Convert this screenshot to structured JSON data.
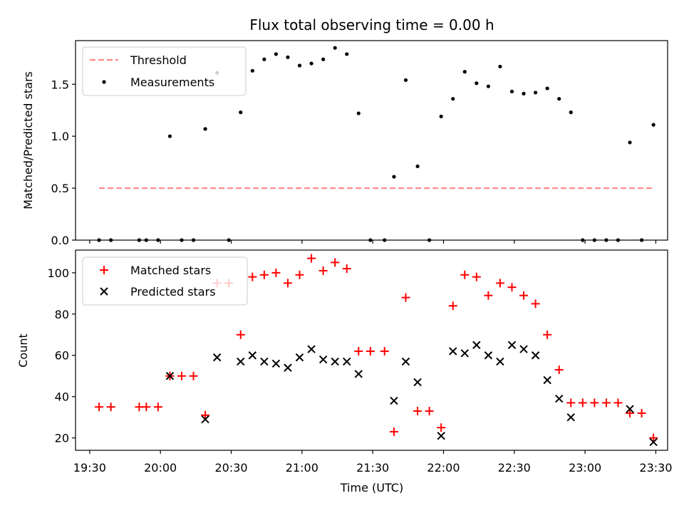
{
  "chart_data": [
    {
      "type": "scatter",
      "title": "Flux total observing time = 0.00 h",
      "xlabel": "",
      "ylabel": "Matched/Predicted stars",
      "xlim": [
        "19:24",
        "23:35"
      ],
      "ylim": [
        0,
        1.92
      ],
      "yticks": [
        0.0,
        0.5,
        1.0,
        1.5
      ],
      "ytick_labels": [
        "0.0",
        "0.5",
        "1.0",
        "1.5"
      ],
      "legend_position": "upper-left",
      "series": [
        {
          "name": "Threshold",
          "kind": "line",
          "style": "dashed",
          "color": "#ff7f7f",
          "x": [
            "19:34",
            "23:29"
          ],
          "y": [
            0.5,
            0.5
          ]
        },
        {
          "name": "Measurements",
          "kind": "scatter",
          "marker": "dot",
          "color": "#000000",
          "x": [
            "19:34",
            "19:39",
            "19:51",
            "19:54",
            "19:59",
            "20:04",
            "20:09",
            "20:14",
            "20:19",
            "20:24",
            "20:29",
            "20:34",
            "20:39",
            "20:44",
            "20:49",
            "20:54",
            "20:59",
            "21:04",
            "21:09",
            "21:14",
            "21:19",
            "21:24",
            "21:29",
            "21:35",
            "21:39",
            "21:44",
            "21:49",
            "21:54",
            "21:59",
            "22:04",
            "22:09",
            "22:14",
            "22:19",
            "22:24",
            "22:29",
            "22:34",
            "22:39",
            "22:44",
            "22:49",
            "22:54",
            "22:59",
            "23:04",
            "23:09",
            "23:14",
            "23:19",
            "23:24",
            "23:29"
          ],
          "y": [
            0,
            0,
            0,
            0,
            0,
            1.0,
            0,
            0,
            1.07,
            1.61,
            0,
            1.23,
            1.63,
            1.74,
            1.79,
            1.76,
            1.68,
            1.7,
            1.74,
            1.85,
            1.79,
            1.22,
            0,
            0,
            0.61,
            1.54,
            0.71,
            0,
            1.19,
            1.36,
            1.62,
            1.51,
            1.48,
            1.67,
            1.43,
            1.41,
            1.42,
            1.46,
            1.36,
            1.23,
            0,
            0,
            0,
            0,
            0.94,
            0,
            1.11
          ]
        }
      ]
    },
    {
      "type": "scatter",
      "title": "",
      "xlabel": "Time (UTC)",
      "ylabel": "Count",
      "xlim": [
        "19:24",
        "23:35"
      ],
      "ylim": [
        14,
        111
      ],
      "xticks": [
        "19:30",
        "20:00",
        "20:30",
        "21:00",
        "21:30",
        "22:00",
        "22:30",
        "23:00",
        "23:30"
      ],
      "yticks": [
        20,
        40,
        60,
        80,
        100
      ],
      "ytick_labels": [
        "20",
        "40",
        "60",
        "80",
        "100"
      ],
      "legend_position": "upper-left",
      "series": [
        {
          "name": "Matched stars",
          "kind": "scatter",
          "marker": "plus",
          "color": "#ff0000",
          "x": [
            "19:34",
            "19:39",
            "19:51",
            "19:54",
            "19:59",
            "20:04",
            "20:09",
            "20:14",
            "20:19",
            "20:24",
            "20:29",
            "20:34",
            "20:39",
            "20:44",
            "20:49",
            "20:54",
            "20:59",
            "21:04",
            "21:09",
            "21:14",
            "21:19",
            "21:24",
            "21:29",
            "21:35",
            "21:39",
            "21:44",
            "21:49",
            "21:54",
            "21:59",
            "22:04",
            "22:09",
            "22:14",
            "22:19",
            "22:24",
            "22:29",
            "22:34",
            "22:39",
            "22:44",
            "22:49",
            "22:54",
            "22:59",
            "23:04",
            "23:09",
            "23:14",
            "23:19",
            "23:24",
            "23:29"
          ],
          "y": [
            35,
            35,
            35,
            35,
            35,
            50,
            50,
            50,
            31,
            95,
            95,
            70,
            98,
            99,
            100,
            95,
            99,
            107,
            101,
            105,
            102,
            62,
            62,
            62,
            23,
            88,
            33,
            33,
            25,
            84,
            99,
            98,
            89,
            95,
            93,
            89,
            85,
            70,
            53,
            37,
            37,
            37,
            37,
            37,
            32,
            32,
            20
          ]
        },
        {
          "name": "Predicted stars",
          "kind": "scatter",
          "marker": "x",
          "color": "#000000",
          "x": [
            "20:04",
            "20:19",
            "20:24",
            "20:34",
            "20:39",
            "20:44",
            "20:49",
            "20:54",
            "20:59",
            "21:04",
            "21:09",
            "21:14",
            "21:19",
            "21:24",
            "21:39",
            "21:44",
            "21:49",
            "21:59",
            "22:04",
            "22:09",
            "22:14",
            "22:19",
            "22:24",
            "22:29",
            "22:34",
            "22:39",
            "22:44",
            "22:49",
            "22:54",
            "23:19",
            "23:29"
          ],
          "y": [
            50,
            29,
            59,
            57,
            60,
            57,
            56,
            54,
            59,
            63,
            58,
            57,
            57,
            51,
            38,
            57,
            47,
            21,
            62,
            61,
            65,
            60,
            57,
            65,
            63,
            60,
            48,
            39,
            30,
            34,
            18
          ]
        }
      ]
    }
  ]
}
